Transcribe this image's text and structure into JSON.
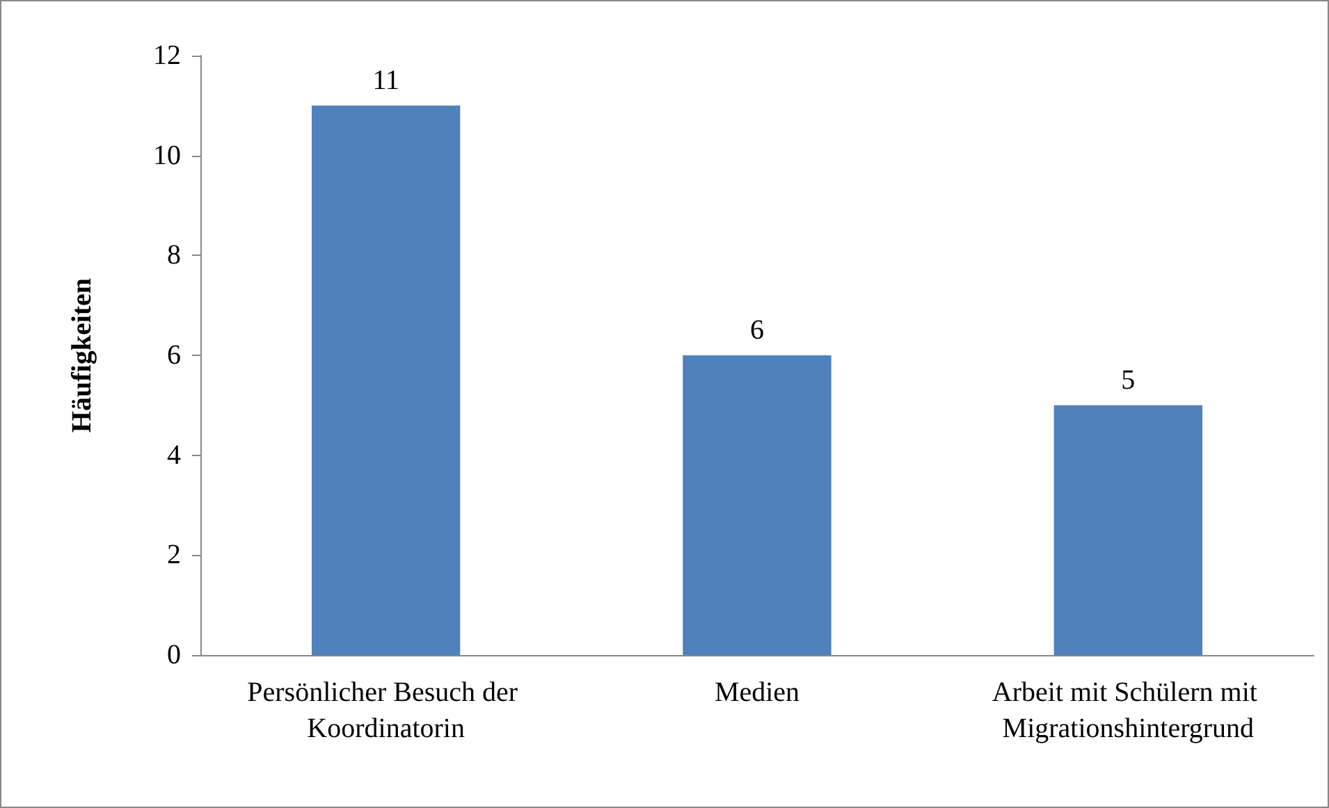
{
  "chart_data": {
    "type": "bar",
    "ylabel": "Häufigkeiten",
    "categories": [
      "Persönlicher Besuch der Koordinatorin",
      "Medien",
      "Arbeit mit Schülern mit Migrationshintergrund"
    ],
    "values": [
      11,
      6,
      5
    ],
    "color": "#4f81bd",
    "ylim": [
      0,
      12
    ],
    "yticks": [
      0,
      2,
      4,
      6,
      8,
      10,
      12
    ],
    "grid": false,
    "data_labels": true
  }
}
